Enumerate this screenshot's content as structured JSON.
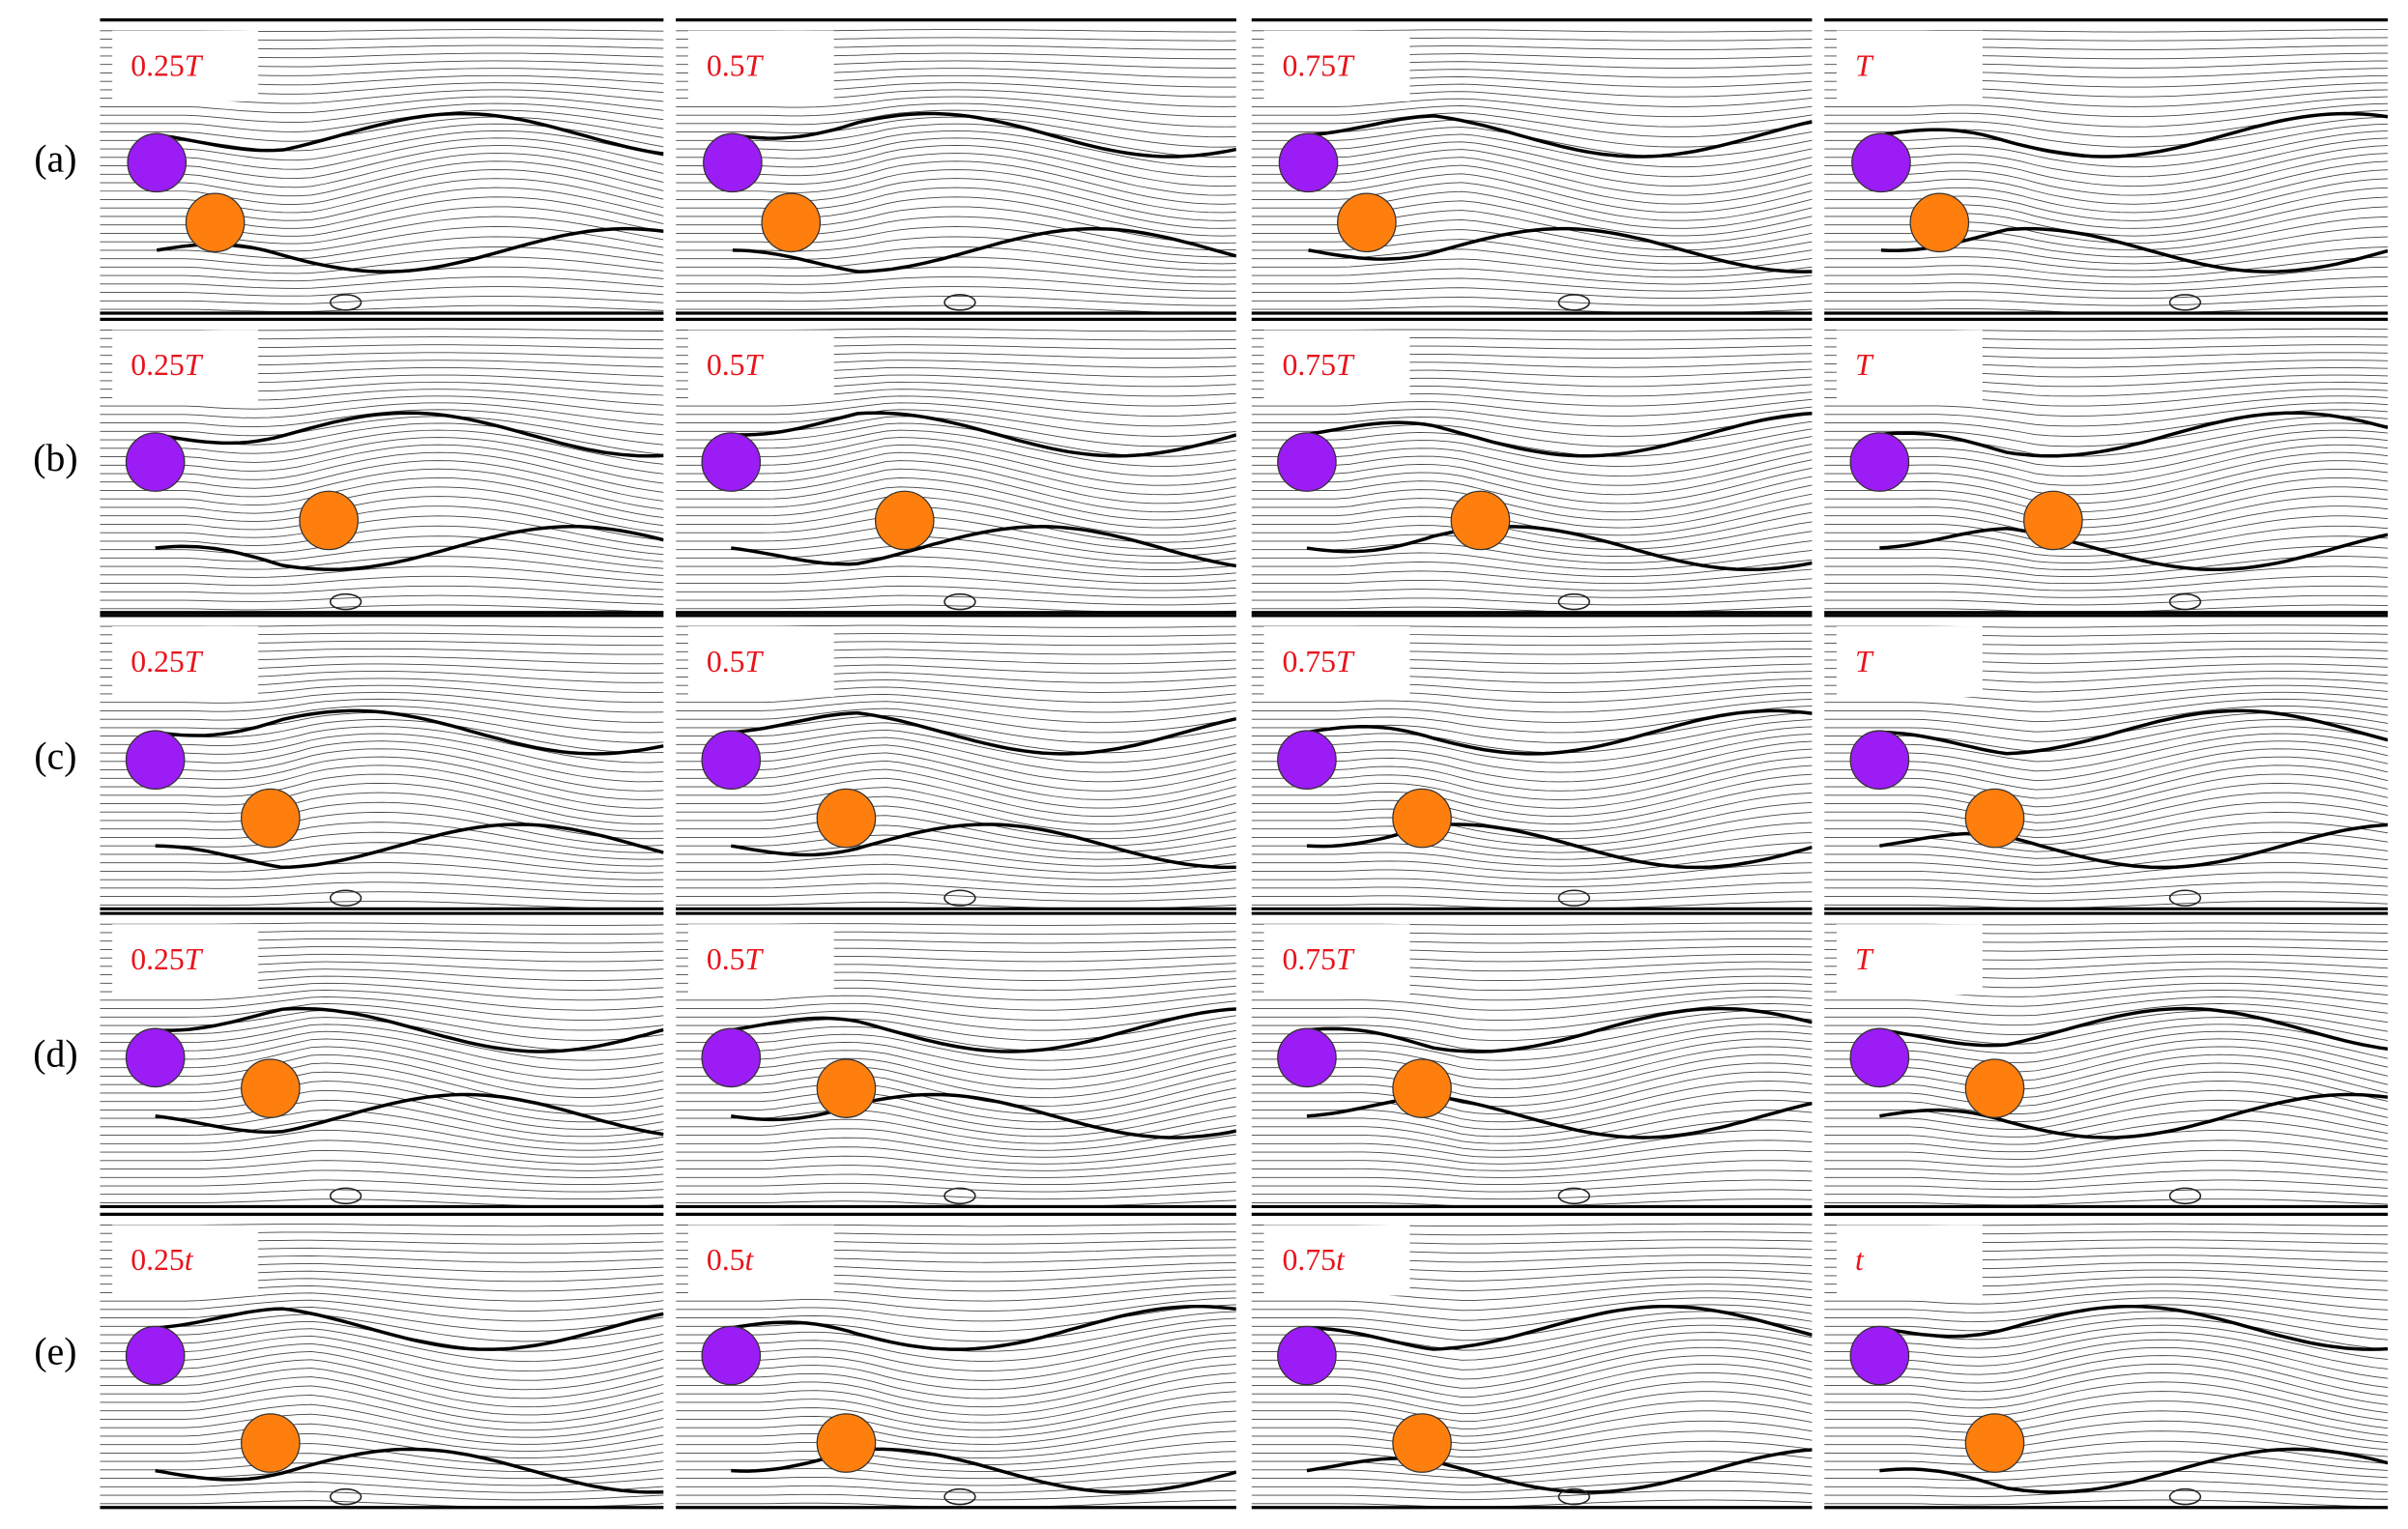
{
  "figure": {
    "rows": [
      {
        "label": "(a)",
        "panels": [
          "0.25T",
          "0.5T",
          "0.75T",
          "T"
        ]
      },
      {
        "label": "(b)",
        "panels": [
          "0.25T",
          "0.5T",
          "0.75T",
          "T"
        ]
      },
      {
        "label": "(c)",
        "panels": [
          "0.25T",
          "0.5T",
          "0.75T",
          "T"
        ]
      },
      {
        "label": "(d)",
        "panels": [
          "0.25T",
          "0.5T",
          "0.75T",
          "T"
        ]
      },
      {
        "label": "(e)",
        "panels": [
          "0.25t",
          "0.5t",
          "0.75t",
          "t"
        ]
      }
    ]
  }
}
